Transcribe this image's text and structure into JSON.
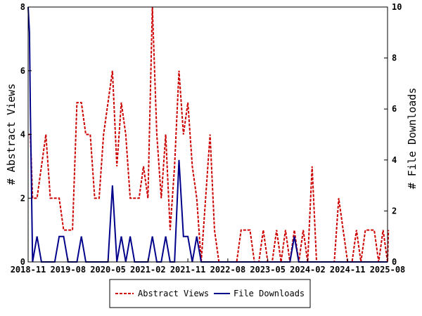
{
  "chart_data": {
    "type": "line",
    "title": "",
    "ylabel_left": "# Abstract Views",
    "ylabel_right": "# File Downloads",
    "ylim_left": [
      0,
      8
    ],
    "ylim_right": [
      0,
      10
    ],
    "yticks_left": [
      "0",
      "2",
      "4",
      "6",
      "8"
    ],
    "yticks_right": [
      "0",
      "2",
      "4",
      "6",
      "8",
      "10"
    ],
    "x_tick_labels": [
      "2018-11",
      "2019-08",
      "2020-05",
      "2021-02",
      "2021-11",
      "2022-08",
      "2023-05",
      "2024-02",
      "2024-11",
      "2025-08"
    ],
    "x_tick_months": [
      0,
      9,
      18,
      27,
      36,
      45,
      54,
      63,
      72,
      81
    ],
    "x_range_months": [
      0,
      81
    ],
    "legend_position": "bottom-center",
    "grid": false,
    "series": [
      {
        "name": "Abstract Views",
        "axis": "left",
        "color": "#cc0000",
        "style": "dashed",
        "values": [
          [
            0.0,
            4
          ],
          [
            0.5,
            4
          ],
          [
            1,
            2
          ],
          [
            2,
            2
          ],
          [
            3,
            3
          ],
          [
            4,
            4
          ],
          [
            5,
            2
          ],
          [
            6,
            2
          ],
          [
            7,
            2
          ],
          [
            8,
            1
          ],
          [
            9,
            1
          ],
          [
            10,
            1
          ],
          [
            11,
            5
          ],
          [
            12,
            5
          ],
          [
            13,
            4
          ],
          [
            14,
            4
          ],
          [
            15,
            2
          ],
          [
            16,
            2
          ],
          [
            17,
            4
          ],
          [
            18,
            5
          ],
          [
            19,
            6
          ],
          [
            20,
            3
          ],
          [
            21,
            5
          ],
          [
            22,
            4
          ],
          [
            23,
            2
          ],
          [
            24,
            2
          ],
          [
            25,
            2
          ],
          [
            26,
            3
          ],
          [
            27,
            2
          ],
          [
            28,
            8
          ],
          [
            29,
            4
          ],
          [
            30,
            2
          ],
          [
            31,
            4
          ],
          [
            32,
            1
          ],
          [
            33,
            3
          ],
          [
            34,
            6
          ],
          [
            35,
            4
          ],
          [
            36,
            5
          ],
          [
            37,
            3
          ],
          [
            38,
            2
          ],
          [
            39,
            0
          ],
          [
            40,
            2
          ],
          [
            41,
            4
          ],
          [
            42,
            1
          ],
          [
            43,
            0
          ],
          [
            44,
            0
          ],
          [
            45,
            0
          ],
          [
            46,
            0
          ],
          [
            47,
            0
          ],
          [
            48,
            1
          ],
          [
            49,
            1
          ],
          [
            50,
            1
          ],
          [
            51,
            0
          ],
          [
            52,
            0
          ],
          [
            53,
            1
          ],
          [
            54,
            0
          ],
          [
            55,
            0
          ],
          [
            56,
            1
          ],
          [
            57,
            0
          ],
          [
            58,
            1
          ],
          [
            59,
            0
          ],
          [
            60,
            1
          ],
          [
            61,
            0
          ],
          [
            62,
            1
          ],
          [
            63,
            0
          ],
          [
            64,
            3
          ],
          [
            65,
            0
          ],
          [
            66,
            0
          ],
          [
            67,
            0
          ],
          [
            68,
            0
          ],
          [
            69,
            0
          ],
          [
            70,
            2
          ],
          [
            71,
            1
          ],
          [
            72,
            0
          ],
          [
            73,
            0
          ],
          [
            74,
            1
          ],
          [
            75,
            0
          ],
          [
            76,
            1
          ],
          [
            77,
            1
          ],
          [
            78,
            1
          ],
          [
            79,
            0
          ],
          [
            80,
            1
          ],
          [
            81,
            0
          ],
          [
            81.2,
            1
          ]
        ]
      },
      {
        "name": "File Downloads",
        "axis": "right",
        "color": "#00008b",
        "style": "solid",
        "values": [
          [
            0.0,
            10
          ],
          [
            0.3,
            9
          ],
          [
            0.5,
            6
          ],
          [
            1,
            0
          ],
          [
            2,
            1
          ],
          [
            3,
            0
          ],
          [
            4,
            0
          ],
          [
            5,
            0
          ],
          [
            6,
            0
          ],
          [
            7,
            1
          ],
          [
            8,
            1
          ],
          [
            9,
            0
          ],
          [
            10,
            0
          ],
          [
            11,
            0
          ],
          [
            12,
            1
          ],
          [
            13,
            0
          ],
          [
            14,
            0
          ],
          [
            15,
            0
          ],
          [
            16,
            0
          ],
          [
            17,
            0
          ],
          [
            18,
            0
          ],
          [
            19,
            3
          ],
          [
            20,
            0
          ],
          [
            21,
            1
          ],
          [
            22,
            0
          ],
          [
            23,
            1
          ],
          [
            24,
            0
          ],
          [
            25,
            0
          ],
          [
            26,
            0
          ],
          [
            27,
            0
          ],
          [
            28,
            1
          ],
          [
            29,
            0
          ],
          [
            30,
            0
          ],
          [
            31,
            1
          ],
          [
            32,
            0
          ],
          [
            33,
            0
          ],
          [
            34,
            4
          ],
          [
            35,
            1
          ],
          [
            36,
            1
          ],
          [
            37,
            0
          ],
          [
            38,
            1
          ],
          [
            39,
            0
          ],
          [
            40,
            0
          ],
          [
            41,
            0
          ],
          [
            42,
            0
          ],
          [
            43,
            0
          ],
          [
            44,
            0
          ],
          [
            45,
            0
          ],
          [
            46,
            0
          ],
          [
            47,
            0
          ],
          [
            48,
            0
          ],
          [
            49,
            0
          ],
          [
            50,
            0
          ],
          [
            51,
            0
          ],
          [
            52,
            0
          ],
          [
            53,
            0
          ],
          [
            54,
            0
          ],
          [
            55,
            0
          ],
          [
            56,
            0
          ],
          [
            57,
            0
          ],
          [
            58,
            0
          ],
          [
            59,
            0
          ],
          [
            60,
            1
          ],
          [
            61,
            0
          ],
          [
            62,
            0
          ],
          [
            63,
            0
          ],
          [
            64,
            0
          ],
          [
            65,
            0
          ],
          [
            66,
            0
          ],
          [
            67,
            0
          ],
          [
            68,
            0
          ],
          [
            69,
            0
          ],
          [
            70,
            0
          ],
          [
            71,
            0
          ],
          [
            72,
            0
          ],
          [
            73,
            0
          ],
          [
            74,
            0
          ],
          [
            75,
            0
          ],
          [
            76,
            0
          ],
          [
            77,
            0
          ],
          [
            78,
            0
          ],
          [
            79,
            0
          ],
          [
            80,
            0
          ],
          [
            81,
            0
          ]
        ]
      }
    ]
  }
}
